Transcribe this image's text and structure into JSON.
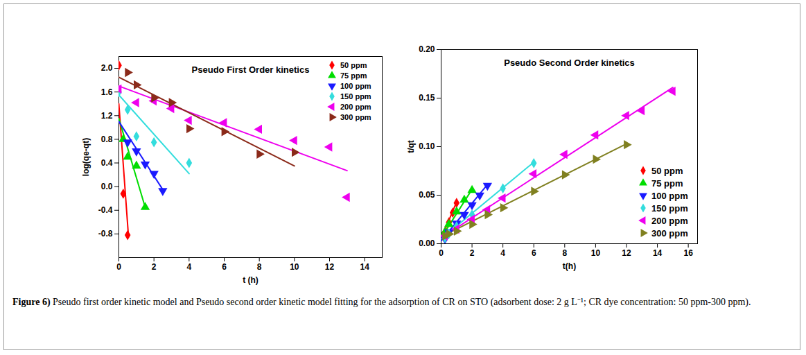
{
  "chart_data": [
    {
      "type": "scatter",
      "title": "Pseudo First Order kinetics",
      "x_label": "t (h)",
      "y_label": "log(qe-qt)",
      "xlim": [
        0,
        15
      ],
      "xticks": [
        0,
        2,
        4,
        6,
        8,
        10,
        12,
        14
      ],
      "ylim": [
        -1.2,
        2.2
      ],
      "yticks": [
        -0.8,
        -0.4,
        {
          "value": 0,
          "label": "0.0"
        },
        0.4,
        0.8,
        1.2,
        1.6,
        {
          "value": 2,
          "label": "2.0"
        }
      ],
      "grid": false,
      "legend": "top-right",
      "series": [
        {
          "name": "50 ppm",
          "color": "#ff0000",
          "marker": "diamond",
          "x": [
            0,
            0.25,
            0.5
          ],
          "values": [
            2.05,
            -0.12,
            -0.82
          ],
          "fit": {
            "x": [
              0,
              0.55
            ],
            "values": [
              1.4,
              -0.85
            ]
          }
        },
        {
          "name": "75 ppm",
          "color": "#00dd00",
          "marker": "triangle-up",
          "x": [
            0.25,
            0.5,
            1,
            1.5
          ],
          "values": [
            0.8,
            0.5,
            0.35,
            -0.35
          ],
          "fit": {
            "x": [
              0,
              1.5
            ],
            "values": [
              1.15,
              -0.35
            ]
          }
        },
        {
          "name": "100 ppm",
          "color": "#1a1aff",
          "marker": "triangle-down",
          "x": [
            0.5,
            1,
            1.5,
            2,
            2.5
          ],
          "values": [
            0.75,
            0.6,
            0.38,
            0.22,
            -0.07
          ],
          "fit": {
            "x": [
              0,
              2.5
            ],
            "values": [
              1.1,
              -0.05
            ]
          }
        },
        {
          "name": "150 ppm",
          "color": "#33dddd",
          "marker": "diamond",
          "x": [
            0,
            0.5,
            1,
            2,
            4
          ],
          "values": [
            1.6,
            1.3,
            0.85,
            0.75,
            0.4
          ],
          "fit": {
            "x": [
              0,
              4
            ],
            "values": [
              1.55,
              0.22
            ]
          }
        },
        {
          "name": "200 ppm",
          "color": "#ee00ee",
          "marker": "triangle-left",
          "x": [
            0,
            1,
            2,
            3,
            4,
            6,
            8,
            10,
            12,
            13
          ],
          "values": [
            1.65,
            1.42,
            1.45,
            1.32,
            1.12,
            1.08,
            0.97,
            0.78,
            0.67,
            -0.18
          ],
          "fit": {
            "x": [
              0,
              13
            ],
            "values": [
              1.7,
              0.27
            ]
          }
        },
        {
          "name": "300 ppm",
          "color": "#8b2a1a",
          "marker": "triangle-right",
          "x": [
            0.5,
            1,
            2,
            3,
            4,
            6,
            8,
            10
          ],
          "values": [
            1.93,
            1.72,
            1.5,
            1.42,
            0.98,
            0.93,
            0.55,
            0.58
          ],
          "fit": {
            "x": [
              0,
              10
            ],
            "values": [
              1.85,
              0.35
            ]
          }
        }
      ]
    },
    {
      "type": "scatter",
      "title": "Pseudo Second Order kinetics",
      "x_label": "t(h)",
      "y_label": "t/qt",
      "xlim": [
        0,
        16.6
      ],
      "xticks": [
        0,
        2,
        4,
        6,
        8,
        10,
        12,
        14,
        16
      ],
      "ylim": [
        0,
        0.2
      ],
      "yticks": [
        {
          "value": 0,
          "label": "0.00"
        },
        0.05,
        {
          "value": 0.1,
          "label": "0.10"
        },
        0.15,
        {
          "value": 0.2,
          "label": "0.20"
        }
      ],
      "grid": false,
      "legend": "bottom-right",
      "series": [
        {
          "name": "50 ppm",
          "color": "#ff0000",
          "marker": "diamond",
          "x": [
            0.25,
            0.5,
            0.75,
            1
          ],
          "values": [
            0.012,
            0.022,
            0.032,
            0.042
          ],
          "fit": {
            "x": [
              0,
              1
            ],
            "values": [
              0.005,
              0.043
            ]
          }
        },
        {
          "name": "75 ppm",
          "color": "#00dd00",
          "marker": "triangle-up",
          "x": [
            0.25,
            0.5,
            1,
            1.5,
            2
          ],
          "values": [
            0.012,
            0.02,
            0.033,
            0.045,
            0.055
          ],
          "fit": {
            "x": [
              0,
              2
            ],
            "values": [
              0.006,
              0.056
            ]
          }
        },
        {
          "name": "100 ppm",
          "color": "#1a1aff",
          "marker": "triangle-down",
          "x": [
            0.25,
            0.5,
            1,
            1.5,
            2,
            2.5,
            3
          ],
          "values": [
            0.005,
            0.012,
            0.021,
            0.03,
            0.04,
            0.05,
            0.06
          ],
          "fit": {
            "x": [
              0,
              3
            ],
            "values": [
              0.003,
              0.061
            ]
          }
        },
        {
          "name": "150 ppm",
          "color": "#33dddd",
          "marker": "diamond",
          "x": [
            0.25,
            0.5,
            1,
            2,
            4,
            6
          ],
          "values": [
            0.006,
            0.01,
            0.018,
            0.03,
            0.057,
            0.083
          ],
          "fit": {
            "x": [
              0,
              6
            ],
            "values": [
              0.005,
              0.084
            ]
          }
        },
        {
          "name": "200 ppm",
          "color": "#ee00ee",
          "marker": "triangle-left",
          "x": [
            0.25,
            1,
            2,
            3,
            4,
            6,
            8,
            10,
            12,
            13,
            15
          ],
          "values": [
            0.008,
            0.015,
            0.025,
            0.035,
            0.047,
            0.072,
            0.092,
            0.112,
            0.132,
            0.137,
            0.157
          ],
          "fit": {
            "x": [
              0,
              15
            ],
            "values": [
              0.006,
              0.161
            ]
          }
        },
        {
          "name": "300 ppm",
          "color": "#808020",
          "marker": "triangle-right",
          "x": [
            0.25,
            0.5,
            1,
            2,
            3,
            4,
            6,
            8,
            10,
            12
          ],
          "values": [
            0.008,
            0.01,
            0.013,
            0.02,
            0.03,
            0.037,
            0.054,
            0.071,
            0.087,
            0.102
          ],
          "fit": {
            "x": [
              0,
              12
            ],
            "values": [
              0.007,
              0.103
            ]
          }
        }
      ]
    }
  ],
  "caption": {
    "label": "Figure 6)",
    "text": "Pseudo first order kinetic model and Pseudo second order kinetic model fitting for the adsorption of CR on STO (adsorbent dose: 2 g L⁻¹; CR dye concentration: 50 ppm-300 ppm)."
  }
}
